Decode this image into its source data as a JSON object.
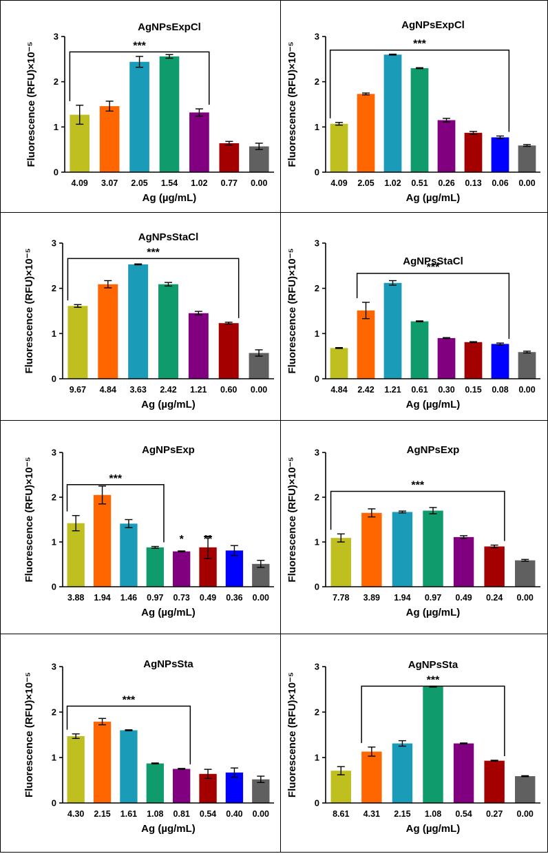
{
  "colors": [
    "#bfbf1f",
    "#ff6600",
    "#1a9bb8",
    "#0f9b6b",
    "#800080",
    "#a50000",
    "#0000ff",
    "#606060"
  ],
  "chart_data": [
    {
      "type": "bar",
      "title": "AgNPsExpCl",
      "xlabel": "Ag (µg/mL)",
      "ylabel": "Fluorescence (RFU)×10⁻⁵",
      "ylim": [
        0,
        3
      ],
      "yticks": [
        "0",
        "1",
        "2",
        "3"
      ],
      "categories": [
        "4.09",
        "3.07",
        "2.05",
        "1.54",
        "1.02",
        "0.77",
        "0.00"
      ],
      "values": [
        1.27,
        1.46,
        2.44,
        2.56,
        1.32,
        0.64,
        0.57
      ],
      "errors": [
        0.21,
        0.11,
        0.12,
        0.04,
        0.08,
        0.04,
        0.07
      ],
      "colors": [
        "#bfbf1f",
        "#ff6600",
        "#1a9bb8",
        "#0f9b6b",
        "#800080",
        "#a50000",
        "#606060"
      ],
      "annotations": [
        {
          "type": "bracket",
          "from": 0,
          "to": 4,
          "label": "***",
          "y": 2.66
        }
      ]
    },
    {
      "type": "bar",
      "title": "AgNPsExpCl",
      "xlabel": "Ag (µg/mL)",
      "ylabel": "Fluorescence (RFU)×10⁻⁵",
      "ylim": [
        0,
        3
      ],
      "yticks": [
        "0",
        "1",
        "2",
        "3"
      ],
      "categories": [
        "4.09",
        "2.05",
        "1.02",
        "0.51",
        "0.26",
        "0.13",
        "0.06",
        "0.00"
      ],
      "values": [
        1.07,
        1.73,
        2.6,
        2.3,
        1.15,
        0.87,
        0.77,
        0.59
      ],
      "errors": [
        0.03,
        0.02,
        0.01,
        0.01,
        0.04,
        0.03,
        0.03,
        0.02
      ],
      "colors": [
        "#bfbf1f",
        "#ff6600",
        "#1a9bb8",
        "#0f9b6b",
        "#800080",
        "#a50000",
        "#0000ff",
        "#606060"
      ],
      "annotations": [
        {
          "type": "bracket",
          "from": 0,
          "to": 6,
          "label": "***",
          "y": 2.7
        }
      ]
    },
    {
      "type": "bar",
      "title": "AgNPsStaCl",
      "xlabel": "Ag (µg/mL)",
      "ylabel": "Fluorescence (RFU)×10⁻⁵",
      "ylim": [
        0,
        3
      ],
      "yticks": [
        "0",
        "1",
        "2",
        "3"
      ],
      "categories": [
        "9.67",
        "4.84",
        "3.63",
        "2.42",
        "1.21",
        "0.60",
        "0.00"
      ],
      "values": [
        1.61,
        2.09,
        2.53,
        2.09,
        1.45,
        1.23,
        0.57
      ],
      "errors": [
        0.03,
        0.08,
        0.01,
        0.04,
        0.04,
        0.02,
        0.07
      ],
      "colors": [
        "#bfbf1f",
        "#ff6600",
        "#1a9bb8",
        "#0f9b6b",
        "#800080",
        "#a50000",
        "#606060"
      ],
      "annotations": [
        {
          "type": "bracket",
          "from": 0,
          "to": 5,
          "label": "***",
          "y": 2.66
        }
      ]
    },
    {
      "type": "bar",
      "title": "AgNPsStaCl",
      "xlabel": "Ag (µg/mL)",
      "ylabel": "Fluorescence (RFU)×10⁻⁵",
      "ylim": [
        0,
        3
      ],
      "yticks": [
        "0",
        "1",
        "2",
        "3"
      ],
      "categories": [
        "4.84",
        "2.42",
        "1.21",
        "0.61",
        "0.30",
        "0.15",
        "0.08",
        "0.00"
      ],
      "values": [
        0.68,
        1.51,
        2.12,
        1.27,
        0.9,
        0.81,
        0.77,
        0.59
      ],
      "errors": [
        0.01,
        0.18,
        0.05,
        0.01,
        0.01,
        0.01,
        0.02,
        0.02
      ],
      "colors": [
        "#bfbf1f",
        "#ff6600",
        "#1a9bb8",
        "#0f9b6b",
        "#800080",
        "#a50000",
        "#0000ff",
        "#606060"
      ],
      "annotations": [
        {
          "type": "bracket",
          "from": 1,
          "to": 6,
          "label": "***",
          "y": 2.33
        }
      ]
    },
    {
      "type": "bar",
      "title": "AgNPsExp",
      "xlabel": "Ag (µg/mL)",
      "ylabel": "Fluorescence (RFU)×10⁻⁵",
      "ylim": [
        0,
        3
      ],
      "yticks": [
        "0",
        "1",
        "2",
        "3"
      ],
      "categories": [
        "3.88",
        "1.94",
        "1.46",
        "0.97",
        "0.73",
        "0.49",
        "0.36",
        "0.00"
      ],
      "values": [
        1.42,
        2.05,
        1.41,
        0.88,
        0.79,
        0.88,
        0.81,
        0.51
      ],
      "errors": [
        0.17,
        0.2,
        0.09,
        0.02,
        0.01,
        0.25,
        0.11,
        0.08
      ],
      "colors": [
        "#bfbf1f",
        "#ff6600",
        "#1a9bb8",
        "#0f9b6b",
        "#800080",
        "#a50000",
        "#0000ff",
        "#606060"
      ],
      "annotations": [
        {
          "type": "bracket",
          "from": 0,
          "to": 3,
          "label": "***",
          "y": 2.28
        },
        {
          "type": "star",
          "at": 4,
          "label": "*",
          "y": 0.92
        },
        {
          "type": "star",
          "at": 5,
          "label": "**",
          "y": 0.92
        }
      ]
    },
    {
      "type": "bar",
      "title": "AgNPsExp",
      "xlabel": "Ag (µg/mL)",
      "ylabel": "Fluorescence (RFU)×10⁻⁵",
      "ylim": [
        0,
        3
      ],
      "yticks": [
        "0",
        "1",
        "2",
        "3"
      ],
      "categories": [
        "7.78",
        "3.89",
        "1.94",
        "0.97",
        "0.49",
        "0.24",
        "0.00"
      ],
      "values": [
        1.09,
        1.65,
        1.67,
        1.7,
        1.11,
        0.9,
        0.59
      ],
      "errors": [
        0.09,
        0.09,
        0.02,
        0.07,
        0.03,
        0.03,
        0.02
      ],
      "colors": [
        "#bfbf1f",
        "#ff6600",
        "#1a9bb8",
        "#0f9b6b",
        "#800080",
        "#a50000",
        "#606060"
      ],
      "annotations": [
        {
          "type": "bracket",
          "from": 0,
          "to": 5,
          "label": "***",
          "y": 2.13
        }
      ]
    },
    {
      "type": "bar",
      "title": "AgNPsSta",
      "xlabel": "Ag (µg/mL)",
      "ylabel": "Fluorescence (RFU)×10⁻⁵",
      "ylim": [
        0,
        3
      ],
      "yticks": [
        "0",
        "1",
        "2",
        "3"
      ],
      "categories": [
        "4.30",
        "2.15",
        "1.61",
        "1.08",
        "0.81",
        "0.54",
        "0.40",
        "0.00"
      ],
      "values": [
        1.47,
        1.79,
        1.6,
        0.87,
        0.75,
        0.64,
        0.67,
        0.52
      ],
      "errors": [
        0.05,
        0.07,
        0.01,
        0.01,
        0.01,
        0.1,
        0.1,
        0.07
      ],
      "colors": [
        "#bfbf1f",
        "#ff6600",
        "#1a9bb8",
        "#0f9b6b",
        "#800080",
        "#a50000",
        "#0000ff",
        "#606060"
      ],
      "annotations": [
        {
          "type": "bracket",
          "from": 0,
          "to": 4,
          "label": "***",
          "y": 2.13
        }
      ]
    },
    {
      "type": "bar",
      "title": "AgNPsSta",
      "xlabel": "Ag (µg/mL)",
      "ylabel": "Fluorescence (RFU)×10⁻⁵",
      "ylim": [
        0,
        3
      ],
      "yticks": [
        "0",
        "1",
        "2",
        "3"
      ],
      "categories": [
        "8.61",
        "4.31",
        "2.15",
        "1.08",
        "0.54",
        "0.27",
        "0.00"
      ],
      "values": [
        0.71,
        1.13,
        1.31,
        2.56,
        1.31,
        0.93,
        0.59
      ],
      "errors": [
        0.09,
        0.1,
        0.06,
        0.01,
        0.01,
        0.01,
        0.01
      ],
      "colors": [
        "#bfbf1f",
        "#ff6600",
        "#1a9bb8",
        "#0f9b6b",
        "#800080",
        "#a50000",
        "#606060"
      ],
      "annotations": [
        {
          "type": "bracket",
          "from": 1,
          "to": 5,
          "label": "***",
          "y": 2.57
        }
      ]
    }
  ]
}
